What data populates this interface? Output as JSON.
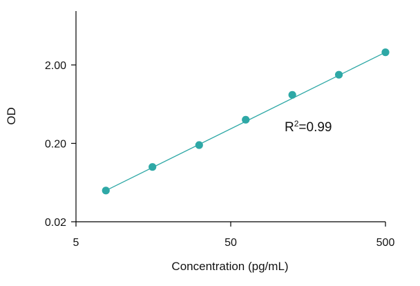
{
  "chart_data": {
    "type": "scatter",
    "title": "",
    "xlabel": "Concentration (pg/mL)",
    "ylabel": "OD",
    "xscale": "log",
    "yscale": "log",
    "xlim": [
      5,
      500
    ],
    "ylim": [
      0.02,
      20
    ],
    "xticks": [
      5,
      50,
      500
    ],
    "xtick_labels": [
      "5",
      "50",
      "500"
    ],
    "yticks": [
      0.02,
      0.2,
      2
    ],
    "ytick_labels": [
      "0.02",
      "0.20",
      "2.00"
    ],
    "grid": false,
    "legend": "none",
    "series": [
      {
        "x": [
          7.8,
          15.6,
          31.25,
          62.5,
          125,
          250,
          500
        ],
        "y": [
          0.05,
          0.1,
          0.19,
          0.4,
          0.83,
          1.5,
          2.9
        ],
        "color": "#2ea8a6"
      }
    ],
    "fit_line": {
      "x": [
        7.8,
        500
      ],
      "y": [
        0.05,
        2.9
      ],
      "color": "#2ea8a6"
    },
    "annotation": {
      "base": "R",
      "superscript": "2",
      "rest": "=0.99"
    }
  }
}
